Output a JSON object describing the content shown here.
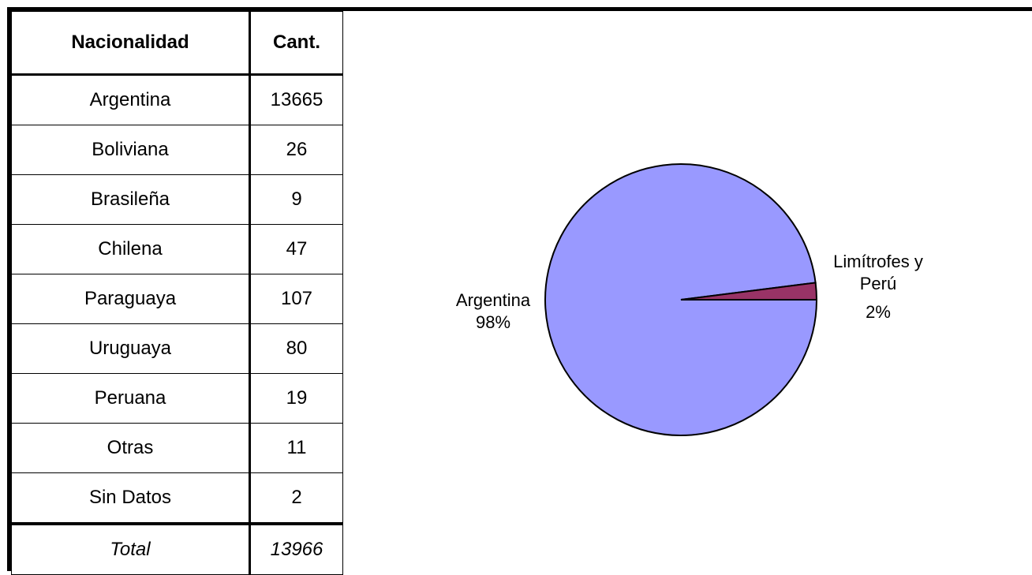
{
  "table": {
    "headers": [
      "Nacionalidad",
      "Cant."
    ],
    "rows": [
      [
        "Argentina",
        "13665"
      ],
      [
        "Boliviana",
        "26"
      ],
      [
        "Brasileña",
        "9"
      ],
      [
        "Chilena",
        "47"
      ],
      [
        "Paraguaya",
        "107"
      ],
      [
        "Uruguaya",
        "80"
      ],
      [
        "Peruana",
        "19"
      ],
      [
        "Otras",
        "11"
      ],
      [
        "Sin Datos",
        "2"
      ]
    ],
    "total_label": "Total",
    "total_value": "13966"
  },
  "chart_data": {
    "type": "pie",
    "slices": [
      {
        "label": "Argentina",
        "percent": 98,
        "percent_label": "98%",
        "color": "#9999ff"
      },
      {
        "label": "Limítrofes y Perú",
        "label_lines": [
          "Limítrofes y",
          "Perú"
        ],
        "percent": 2,
        "percent_label": "2%",
        "color": "#993366"
      }
    ]
  }
}
